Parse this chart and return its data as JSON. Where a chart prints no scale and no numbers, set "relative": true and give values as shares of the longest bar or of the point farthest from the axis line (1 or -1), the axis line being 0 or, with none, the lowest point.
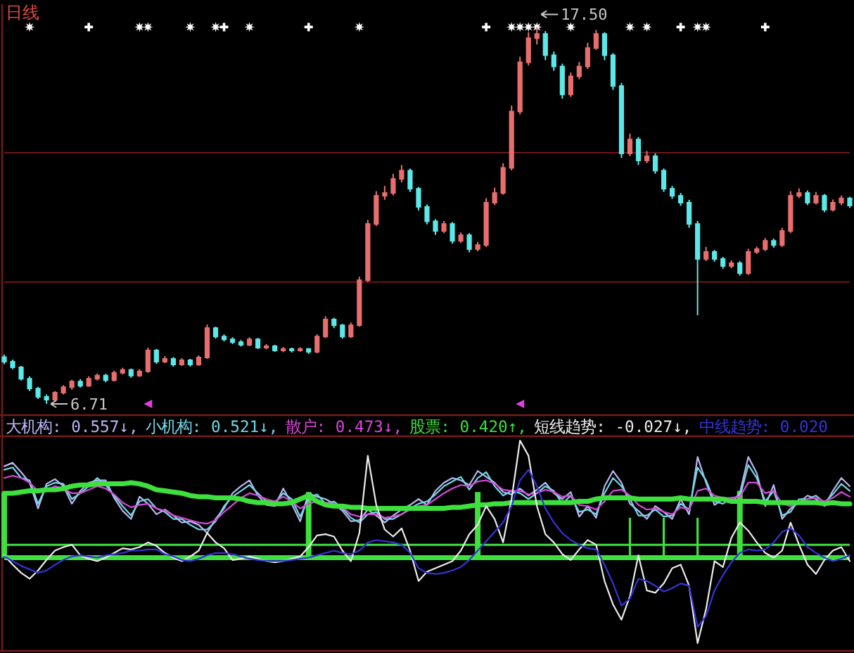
{
  "chart_data": [
    {
      "type": "candlestick",
      "title": "日线",
      "categories": [
        null,
        null,
        null,
        null,
        null,
        null,
        null,
        null,
        null,
        null,
        null,
        null,
        null,
        null,
        null,
        null,
        null,
        null,
        null,
        null,
        null,
        null,
        null,
        null,
        null,
        null,
        null,
        null,
        null,
        null,
        null,
        null,
        null,
        null,
        null,
        null,
        null,
        null,
        null,
        null,
        null,
        null,
        null,
        null,
        null,
        null,
        null,
        null,
        null,
        null,
        null,
        null,
        null,
        null,
        null,
        null,
        null,
        null,
        null,
        null,
        null,
        null,
        null,
        null,
        null,
        null,
        null,
        null,
        null,
        null,
        null,
        null,
        null,
        null,
        null,
        null,
        null,
        null,
        null,
        null,
        null,
        null,
        null,
        null,
        null,
        null,
        null,
        null,
        null,
        null,
        null,
        null,
        null,
        null,
        null,
        null,
        null,
        null,
        null,
        null,
        null
      ],
      "ohlc": [
        [
          8.05,
          8.12,
          7.85,
          7.92
        ],
        [
          7.92,
          7.98,
          7.7,
          7.76
        ],
        [
          7.76,
          7.8,
          7.38,
          7.43
        ],
        [
          7.43,
          7.5,
          7.08,
          7.15
        ],
        [
          7.15,
          7.2,
          6.85,
          6.91
        ],
        [
          6.91,
          6.98,
          6.71,
          6.83
        ],
        [
          6.83,
          7.08,
          6.78,
          7.03
        ],
        [
          7.03,
          7.25,
          6.98,
          7.19
        ],
        [
          7.19,
          7.4,
          7.12,
          7.35
        ],
        [
          7.35,
          7.42,
          7.18,
          7.23
        ],
        [
          7.23,
          7.5,
          7.2,
          7.43
        ],
        [
          7.43,
          7.58,
          7.38,
          7.52
        ],
        [
          7.52,
          7.57,
          7.33,
          7.39
        ],
        [
          7.39,
          7.66,
          7.35,
          7.6
        ],
        [
          7.6,
          7.75,
          7.55,
          7.68
        ],
        [
          7.68,
          7.72,
          7.46,
          7.52
        ],
        [
          7.52,
          7.7,
          7.48,
          7.64
        ],
        [
          7.64,
          8.32,
          7.6,
          8.24
        ],
        [
          8.24,
          8.28,
          7.86,
          7.92
        ],
        [
          7.92,
          8.08,
          7.88,
          8.0
        ],
        [
          8.0,
          8.05,
          7.78,
          7.84
        ],
        [
          7.84,
          8.02,
          7.8,
          7.96
        ],
        [
          7.96,
          8.0,
          7.78,
          7.84
        ],
        [
          7.84,
          8.1,
          7.8,
          8.04
        ],
        [
          8.04,
          8.98,
          8.0,
          8.88
        ],
        [
          8.88,
          8.92,
          8.58,
          8.64
        ],
        [
          8.64,
          8.7,
          8.5,
          8.56
        ],
        [
          8.56,
          8.62,
          8.42,
          8.48
        ],
        [
          8.48,
          8.54,
          8.35,
          8.4
        ],
        [
          8.4,
          8.62,
          8.36,
          8.56
        ],
        [
          8.56,
          8.6,
          8.28,
          8.32
        ],
        [
          8.32,
          8.42,
          8.27,
          8.36
        ],
        [
          8.36,
          8.4,
          8.2,
          8.24
        ],
        [
          8.24,
          8.34,
          8.19,
          8.28
        ],
        [
          8.28,
          8.32,
          8.18,
          8.24
        ],
        [
          8.24,
          8.33,
          8.2,
          8.28
        ],
        [
          8.28,
          8.31,
          8.14,
          8.2
        ],
        [
          8.2,
          8.7,
          8.16,
          8.64
        ],
        [
          8.64,
          9.22,
          8.6,
          9.13
        ],
        [
          9.13,
          9.18,
          8.88,
          8.96
        ],
        [
          8.96,
          9.0,
          8.58,
          8.64
        ],
        [
          8.64,
          9.04,
          8.6,
          8.96
        ],
        [
          8.96,
          10.35,
          8.92,
          10.25
        ],
        [
          10.25,
          11.98,
          10.2,
          11.86
        ],
        [
          11.86,
          12.8,
          11.8,
          12.67
        ],
        [
          12.67,
          12.95,
          12.55,
          12.75
        ],
        [
          12.75,
          13.3,
          12.68,
          13.15
        ],
        [
          13.15,
          13.55,
          13.05,
          13.39
        ],
        [
          13.39,
          13.45,
          12.78,
          12.87
        ],
        [
          12.87,
          12.92,
          12.25,
          12.35
        ],
        [
          12.35,
          12.42,
          11.85,
          11.94
        ],
        [
          11.94,
          12.0,
          11.55,
          11.66
        ],
        [
          11.66,
          11.95,
          11.6,
          11.86
        ],
        [
          11.86,
          11.92,
          11.3,
          11.38
        ],
        [
          11.38,
          11.62,
          11.32,
          11.54
        ],
        [
          11.54,
          11.6,
          11.05,
          11.14
        ],
        [
          11.14,
          11.35,
          11.08,
          11.26
        ],
        [
          11.26,
          12.6,
          11.2,
          12.47
        ],
        [
          12.47,
          12.9,
          12.4,
          12.75
        ],
        [
          12.75,
          13.6,
          12.7,
          13.47
        ],
        [
          13.47,
          15.25,
          13.4,
          15.08
        ],
        [
          15.08,
          16.65,
          15.0,
          16.49
        ],
        [
          16.49,
          17.35,
          16.4,
          17.18
        ],
        [
          17.18,
          17.5,
          17.0,
          17.3
        ],
        [
          17.3,
          17.38,
          16.55,
          16.69
        ],
        [
          16.69,
          16.8,
          16.25,
          16.37
        ],
        [
          16.37,
          16.45,
          15.45,
          15.57
        ],
        [
          15.57,
          16.2,
          15.5,
          16.09
        ],
        [
          16.09,
          16.5,
          16.0,
          16.37
        ],
        [
          16.37,
          17.05,
          16.3,
          16.9
        ],
        [
          16.9,
          17.42,
          16.85,
          17.3
        ],
        [
          17.3,
          17.35,
          16.55,
          16.69
        ],
        [
          16.69,
          16.75,
          15.7,
          15.81
        ],
        [
          15.81,
          15.9,
          13.75,
          13.88
        ],
        [
          13.88,
          14.45,
          13.8,
          14.28
        ],
        [
          14.28,
          14.35,
          13.55,
          13.68
        ],
        [
          13.68,
          13.95,
          13.6,
          13.8
        ],
        [
          13.8,
          13.88,
          13.3,
          13.39
        ],
        [
          13.39,
          13.45,
          12.78,
          12.87
        ],
        [
          12.87,
          12.95,
          12.58,
          12.67
        ],
        [
          12.67,
          12.75,
          12.38,
          12.47
        ],
        [
          12.47,
          12.55,
          11.75,
          11.86
        ],
        [
          11.86,
          11.95,
          9.25,
          10.86
        ],
        [
          10.86,
          11.2,
          10.8,
          11.06
        ],
        [
          11.06,
          11.12,
          10.78,
          10.86
        ],
        [
          10.86,
          10.92,
          10.58,
          10.66
        ],
        [
          10.66,
          10.82,
          10.6,
          10.74
        ],
        [
          10.74,
          10.8,
          10.38,
          10.45
        ],
        [
          10.45,
          11.15,
          10.4,
          11.06
        ],
        [
          11.06,
          11.22,
          11.0,
          11.14
        ],
        [
          11.14,
          11.46,
          11.08,
          11.38
        ],
        [
          11.38,
          11.44,
          11.18,
          11.26
        ],
        [
          11.26,
          11.75,
          11.2,
          11.66
        ],
        [
          11.66,
          12.8,
          11.6,
          12.67
        ],
        [
          12.67,
          12.88,
          12.6,
          12.75
        ],
        [
          12.75,
          12.82,
          12.4,
          12.47
        ],
        [
          12.47,
          12.78,
          12.42,
          12.67
        ],
        [
          12.67,
          12.72,
          12.2,
          12.27
        ],
        [
          12.27,
          12.56,
          12.22,
          12.47
        ],
        [
          12.47,
          12.68,
          12.4,
          12.59
        ],
        [
          12.59,
          12.64,
          12.32,
          12.39
        ]
      ],
      "colors": [
        "#5ce8e8",
        "#5ce8e8",
        "#5ce8e8",
        "#5ce8e8",
        "#5ce8e8",
        "#5ce8e8",
        "#e86e6e",
        "#e86e6e",
        "#e86e6e",
        "#5ce8e8",
        "#e86e6e",
        "#e86e6e",
        "#5ce8e8",
        "#e86e6e",
        "#e86e6e",
        "#5ce8e8",
        "#e86e6e",
        "#e86e6e",
        "#5ce8e8",
        "#e86e6e",
        "#5ce8e8",
        "#e86e6e",
        "#5ce8e8",
        "#e86e6e",
        "#e86e6e",
        "#5ce8e8",
        "#5ce8e8",
        "#5ce8e8",
        "#5ce8e8",
        "#e86e6e",
        "#5ce8e8",
        "#e86e6e",
        "#5ce8e8",
        "#e86e6e",
        "#5ce8e8",
        "#e86e6e",
        "#5ce8e8",
        "#e86e6e",
        "#e86e6e",
        "#5ce8e8",
        "#5ce8e8",
        "#e86e6e",
        "#e86e6e",
        "#e86e6e",
        "#e86e6e",
        "#e86e6e",
        "#e86e6e",
        "#e86e6e",
        "#5ce8e8",
        "#5ce8e8",
        "#5ce8e8",
        "#5ce8e8",
        "#e86e6e",
        "#5ce8e8",
        "#e86e6e",
        "#5ce8e8",
        "#e86e6e",
        "#e86e6e",
        "#e86e6e",
        "#e86e6e",
        "#e86e6e",
        "#e86e6e",
        "#e86e6e",
        "#e86e6e",
        "#5ce8e8",
        "#5ce8e8",
        "#5ce8e8",
        "#e86e6e",
        "#e86e6e",
        "#e86e6e",
        "#e86e6e",
        "#5ce8e8",
        "#5ce8e8",
        "#5ce8e8",
        "#e86e6e",
        "#5ce8e8",
        "#e86e6e",
        "#5ce8e8",
        "#5ce8e8",
        "#5ce8e8",
        "#5ce8e8",
        "#5ce8e8",
        "#5ce8e8",
        "#e86e6e",
        "#5ce8e8",
        "#5ce8e8",
        "#e86e6e",
        "#5ce8e8",
        "#e86e6e",
        "#e86e6e",
        "#e86e6e",
        "#5ce8e8",
        "#e86e6e",
        "#e86e6e",
        "#e86e6e",
        "#5ce8e8",
        "#e86e6e",
        "#5ce8e8",
        "#e86e6e",
        "#e86e6e",
        "#5ce8e8"
      ],
      "yticks": [
        {
          "value": 13.9,
          "label": null
        },
        {
          "value": 10.2,
          "label": null
        }
      ],
      "grid": true,
      "annotations": [
        "17.50",
        "6.71"
      ],
      "series": [
        {
          "type": "scatter",
          "marker": "star",
          "color": "#ffffff",
          "values": [
            null,
            null,
            null,
            17.5,
            null,
            null,
            null,
            null,
            null,
            null,
            null,
            null,
            null,
            null,
            null,
            null,
            17.5,
            17.5,
            null,
            null,
            null,
            null,
            17.5,
            null,
            null,
            17.5,
            null,
            null,
            null,
            17.5,
            null,
            null,
            null,
            null,
            null,
            null,
            null,
            null,
            null,
            null,
            null,
            null,
            17.5,
            null,
            null,
            null,
            null,
            null,
            null,
            null,
            null,
            null,
            null,
            null,
            null,
            null,
            null,
            null,
            null,
            null,
            17.5,
            17.5,
            17.5,
            17.5,
            null,
            null,
            null,
            17.5,
            null,
            null,
            null,
            null,
            null,
            null,
            17.5,
            null,
            17.5,
            null,
            null,
            null,
            null,
            null,
            17.5,
            17.5,
            null,
            null,
            null,
            null,
            null,
            null,
            null,
            null,
            null,
            null,
            null,
            null,
            null,
            null,
            null,
            null,
            null
          ]
        },
        {
          "type": "scatter",
          "marker": "cross",
          "color": "#ffffff",
          "values": [
            null,
            null,
            null,
            null,
            null,
            null,
            null,
            null,
            null,
            null,
            17.5,
            null,
            null,
            null,
            null,
            null,
            null,
            null,
            null,
            null,
            null,
            null,
            null,
            null,
            null,
            null,
            17.5,
            null,
            null,
            null,
            null,
            null,
            null,
            null,
            null,
            null,
            17.5,
            null,
            null,
            null,
            null,
            null,
            null,
            null,
            null,
            null,
            null,
            null,
            null,
            null,
            null,
            null,
            null,
            null,
            null,
            null,
            null,
            17.5,
            null,
            null,
            null,
            null,
            null,
            null,
            null,
            null,
            null,
            null,
            null,
            null,
            null,
            null,
            null,
            null,
            null,
            null,
            null,
            null,
            null,
            null,
            17.5,
            null,
            null,
            null,
            null,
            null,
            null,
            null,
            null,
            null,
            17.5,
            null,
            null,
            null,
            null,
            null,
            null,
            null,
            null,
            null,
            null
          ]
        },
        {
          "type": "scatter",
          "marker": "triangle",
          "color": "#e040e0",
          "values": [
            null,
            null,
            null,
            null,
            null,
            null,
            null,
            null,
            null,
            null,
            null,
            null,
            null,
            null,
            null,
            null,
            null,
            6.71,
            null,
            null,
            null,
            null,
            null,
            null,
            null,
            null,
            null,
            null,
            null,
            null,
            null,
            null,
            null,
            null,
            null,
            null,
            null,
            null,
            null,
            null,
            null,
            null,
            null,
            null,
            null,
            null,
            null,
            null,
            null,
            null,
            null,
            null,
            null,
            null,
            null,
            null,
            null,
            null,
            null,
            null,
            null,
            6.71,
            null,
            null,
            null,
            null,
            null,
            null,
            null,
            null,
            null,
            null,
            null,
            null,
            null,
            null,
            null,
            null,
            null,
            null,
            null,
            null,
            null,
            null,
            null,
            null,
            null,
            null,
            null,
            null,
            null,
            null,
            null,
            null,
            null,
            null,
            null,
            null,
            null,
            null,
            null
          ]
        }
      ]
    },
    {
      "type": "line",
      "relative": true,
      "categories": [
        null,
        null,
        null,
        null,
        null,
        null,
        null,
        null,
        null,
        null,
        null,
        null,
        null,
        null,
        null,
        null,
        null,
        null,
        null,
        null,
        null,
        null,
        null,
        null,
        null,
        null,
        null,
        null,
        null,
        null,
        null,
        null,
        null,
        null,
        null,
        null,
        null,
        null,
        null,
        null,
        null,
        null,
        null,
        null,
        null,
        null,
        null,
        null,
        null,
        null,
        null,
        null,
        null,
        null,
        null,
        null,
        null,
        null,
        null,
        null,
        null,
        null,
        null,
        null,
        null,
        null,
        null,
        null,
        null,
        null,
        null,
        null,
        null,
        null,
        null,
        null,
        null,
        null,
        null,
        null,
        null,
        null,
        null,
        null,
        null,
        null,
        null,
        null,
        null,
        null,
        null,
        null,
        null,
        null,
        null,
        null,
        null,
        null,
        null,
        null,
        null
      ],
      "ref_lines": [
        {
          "axis": "y",
          "value": 0,
          "color": "#3ee03e"
        },
        {
          "axis": "y",
          "value": 0.11,
          "color": "#3ee03e"
        }
      ],
      "series": [
        {
          "name": "大机构: 0.557↓,",
          "color": "#b8b8f4",
          "values": [
            0.78,
            0.81,
            0.73,
            0.64,
            0.42,
            0.63,
            0.67,
            0.61,
            0.46,
            0.57,
            0.64,
            0.66,
            0.66,
            0.51,
            0.4,
            0.33,
            0.52,
            0.46,
            0.37,
            0.41,
            0.36,
            0.3,
            0.31,
            0.28,
            0.21,
            0.33,
            0.42,
            0.55,
            0.61,
            0.66,
            0.53,
            0.45,
            0.44,
            0.59,
            0.46,
            0.31,
            0.55,
            0.52,
            0.5,
            0.46,
            0.4,
            0.31,
            0.32,
            0.41,
            0.36,
            0.3,
            0.36,
            0.41,
            0.45,
            0.5,
            0.45,
            0.57,
            0.64,
            0.68,
            0.66,
            0.62,
            0.74,
            0.69,
            0.64,
            0.56,
            0.54,
            0.59,
            0.53,
            0.58,
            0.64,
            0.55,
            0.5,
            0.56,
            0.35,
            0.44,
            0.34,
            0.61,
            0.74,
            0.64,
            0.46,
            0.4,
            0.33,
            0.44,
            0.39,
            0.33,
            0.5,
            0.37,
            0.86,
            0.64,
            0.45,
            0.5,
            0.47,
            0.55,
            0.86,
            0.72,
            0.44,
            0.62,
            0.33,
            0.42,
            0.47,
            0.53,
            0.5,
            0.44,
            0.57,
            0.68,
            0.61
          ]
        },
        {
          "name": "小机构: 0.521↓,",
          "color": "#72d8e6",
          "values": [
            0.75,
            0.77,
            0.68,
            0.66,
            0.46,
            0.61,
            0.64,
            0.63,
            0.5,
            0.55,
            0.61,
            0.68,
            0.62,
            0.53,
            0.44,
            0.36,
            0.48,
            0.5,
            0.42,
            0.39,
            0.33,
            0.33,
            0.28,
            0.24,
            0.24,
            0.31,
            0.44,
            0.52,
            0.57,
            0.62,
            0.55,
            0.48,
            0.47,
            0.55,
            0.5,
            0.35,
            0.51,
            0.54,
            0.46,
            0.48,
            0.42,
            0.34,
            0.3,
            0.37,
            0.39,
            0.33,
            0.33,
            0.37,
            0.42,
            0.46,
            0.48,
            0.54,
            0.61,
            0.65,
            0.69,
            0.58,
            0.68,
            0.73,
            0.61,
            0.53,
            0.57,
            0.55,
            0.5,
            0.55,
            0.61,
            0.57,
            0.46,
            0.53,
            0.39,
            0.41,
            0.37,
            0.55,
            0.68,
            0.61,
            0.5,
            0.36,
            0.36,
            0.41,
            0.35,
            0.36,
            0.46,
            0.41,
            0.77,
            0.66,
            0.48,
            0.46,
            0.51,
            0.52,
            0.79,
            0.68,
            0.48,
            0.57,
            0.36,
            0.39,
            0.5,
            0.5,
            0.53,
            0.47,
            0.54,
            0.63,
            0.57
          ]
        },
        {
          "name": "散户: 0.473↓,",
          "color": "#d848d8",
          "values": [
            0.68,
            0.7,
            0.68,
            0.64,
            0.57,
            0.58,
            0.61,
            0.59,
            0.55,
            0.55,
            0.58,
            0.61,
            0.59,
            0.54,
            0.47,
            0.43,
            0.45,
            0.46,
            0.42,
            0.4,
            0.36,
            0.34,
            0.32,
            0.3,
            0.29,
            0.32,
            0.39,
            0.45,
            0.51,
            0.55,
            0.53,
            0.5,
            0.48,
            0.52,
            0.48,
            0.42,
            0.46,
            0.48,
            0.47,
            0.46,
            0.43,
            0.37,
            0.35,
            0.37,
            0.37,
            0.34,
            0.35,
            0.37,
            0.41,
            0.44,
            0.45,
            0.5,
            0.55,
            0.59,
            0.62,
            0.61,
            0.65,
            0.66,
            0.63,
            0.58,
            0.57,
            0.57,
            0.54,
            0.55,
            0.58,
            0.56,
            0.52,
            0.53,
            0.45,
            0.44,
            0.41,
            0.48,
            0.57,
            0.58,
            0.53,
            0.45,
            0.41,
            0.42,
            0.39,
            0.37,
            0.43,
            0.41,
            0.57,
            0.59,
            0.53,
            0.51,
            0.51,
            0.52,
            0.64,
            0.64,
            0.55,
            0.57,
            0.46,
            0.44,
            0.47,
            0.5,
            0.51,
            0.48,
            0.51,
            0.56,
            0.52
          ]
        },
        {
          "name": "股票: 0.420↑,",
          "color": "#3ee03e",
          "values": [
            0.55,
            0.55,
            0.56,
            0.57,
            0.57,
            0.58,
            0.58,
            0.59,
            0.61,
            0.62,
            0.62,
            0.63,
            0.63,
            0.63,
            0.63,
            0.64,
            0.63,
            0.61,
            0.58,
            0.57,
            0.56,
            0.55,
            0.53,
            0.52,
            0.52,
            0.51,
            0.51,
            0.51,
            0.5,
            0.48,
            0.47,
            0.47,
            0.46,
            0.46,
            0.47,
            0.5,
            0.53,
            0.48,
            0.45,
            0.44,
            0.44,
            0.43,
            0.43,
            0.42,
            0.42,
            0.42,
            0.42,
            0.42,
            0.42,
            0.42,
            0.42,
            0.42,
            0.42,
            0.43,
            0.43,
            0.44,
            0.45,
            0.45,
            0.46,
            0.46,
            0.47,
            0.47,
            0.47,
            0.47,
            0.47,
            0.47,
            0.47,
            0.47,
            0.48,
            0.48,
            0.5,
            0.51,
            0.51,
            0.51,
            0.51,
            0.5,
            0.5,
            0.5,
            0.5,
            0.5,
            0.51,
            0.5,
            0.5,
            0.5,
            0.5,
            0.5,
            0.48,
            0.48,
            0.48,
            0.48,
            0.47,
            0.47,
            0.47,
            0.47,
            0.47,
            0.47,
            0.47,
            0.46,
            0.47,
            0.46,
            0.46
          ]
        },
        {
          "name": "短线趋势: -0.027↓,",
          "color": "#ececec",
          "values": [
            0.02,
            -0.06,
            -0.13,
            -0.18,
            -0.11,
            -0.02,
            0.06,
            0.09,
            0.11,
            0.02,
            -0.01,
            -0.03,
            0.0,
            0.04,
            0.08,
            0.07,
            0.09,
            0.13,
            0.1,
            0.04,
            0.0,
            -0.03,
            0.01,
            0.06,
            0.21,
            0.13,
            0.08,
            -0.02,
            -0.01,
            0.01,
            -0.01,
            -0.03,
            -0.04,
            -0.03,
            -0.01,
            0.01,
            0.09,
            0.19,
            0.2,
            0.18,
            0.06,
            -0.03,
            0.21,
            0.87,
            0.45,
            0.24,
            0.18,
            0.25,
            0.06,
            -0.2,
            -0.12,
            -0.09,
            -0.06,
            -0.03,
            0.06,
            0.2,
            0.28,
            0.44,
            0.33,
            0.13,
            0.5,
            1.0,
            0.87,
            0.44,
            0.2,
            0.13,
            0.03,
            -0.02,
            0.07,
            0.15,
            0.11,
            -0.2,
            -0.4,
            -0.53,
            -0.33,
            0.02,
            -0.28,
            -0.3,
            -0.22,
            -0.09,
            -0.06,
            -0.24,
            -0.73,
            -0.44,
            -0.03,
            -0.08,
            0.17,
            0.3,
            0.23,
            0.13,
            0.04,
            0.0,
            0.06,
            0.3,
            0.11,
            -0.06,
            -0.14,
            -0.02,
            0.06,
            0.09,
            -0.03
          ]
        },
        {
          "name": "中线趋势: 0.020",
          "color": "#3434d8",
          "values": [
            0.01,
            -0.03,
            -0.07,
            -0.1,
            -0.13,
            -0.11,
            -0.06,
            -0.02,
            0.01,
            0.02,
            0.01,
            0.0,
            0.02,
            0.03,
            0.04,
            0.06,
            0.06,
            0.07,
            0.07,
            0.03,
            0.01,
            -0.02,
            -0.03,
            -0.01,
            0.02,
            0.04,
            0.04,
            0.03,
            0.01,
            -0.01,
            -0.02,
            -0.03,
            -0.03,
            -0.03,
            -0.02,
            -0.01,
            0.0,
            0.02,
            0.04,
            0.06,
            0.04,
            0.03,
            0.06,
            0.13,
            0.15,
            0.14,
            0.13,
            0.11,
            0.04,
            -0.09,
            -0.13,
            -0.14,
            -0.13,
            -0.11,
            -0.08,
            -0.02,
            0.06,
            0.14,
            0.22,
            0.3,
            0.44,
            0.66,
            0.75,
            0.61,
            0.42,
            0.3,
            0.21,
            0.15,
            0.11,
            0.08,
            0.07,
            -0.06,
            -0.22,
            -0.41,
            -0.35,
            -0.18,
            -0.2,
            -0.24,
            -0.29,
            -0.26,
            -0.22,
            -0.24,
            -0.59,
            -0.5,
            -0.28,
            -0.15,
            -0.04,
            0.04,
            0.07,
            0.06,
            0.07,
            0.13,
            0.22,
            0.25,
            0.19,
            0.09,
            0.04,
            0.0,
            -0.03,
            -0.01,
            0.02
          ]
        },
        {
          "type": "bar",
          "color": "#3ee03e",
          "values": [
            0.55,
            null,
            null,
            null,
            null,
            null,
            null,
            null,
            null,
            null,
            null,
            null,
            null,
            null,
            null,
            null,
            null,
            null,
            null,
            null,
            null,
            null,
            null,
            null,
            null,
            null,
            null,
            null,
            null,
            null,
            null,
            null,
            null,
            null,
            null,
            null,
            0.56,
            null,
            null,
            null,
            null,
            null,
            null,
            null,
            null,
            null,
            null,
            null,
            null,
            null,
            null,
            null,
            null,
            null,
            null,
            null,
            0.56,
            null,
            null,
            null,
            null,
            null,
            null,
            null,
            null,
            null,
            null,
            null,
            null,
            null,
            null,
            null,
            null,
            null,
            null,
            null,
            null,
            null,
            null,
            null,
            null,
            null,
            null,
            null,
            null,
            null,
            null,
            0.57,
            null,
            null,
            null,
            null,
            null,
            null,
            null,
            null,
            null,
            null,
            null,
            null,
            null
          ]
        },
        {
          "type": "bar",
          "color": "#3ee03e",
          "values": [
            null,
            null,
            null,
            null,
            null,
            null,
            null,
            null,
            null,
            null,
            null,
            null,
            null,
            null,
            null,
            null,
            null,
            null,
            null,
            null,
            null,
            null,
            null,
            null,
            null,
            null,
            null,
            null,
            null,
            null,
            null,
            null,
            null,
            null,
            null,
            null,
            null,
            null,
            null,
            null,
            null,
            null,
            null,
            null,
            null,
            null,
            null,
            null,
            null,
            null,
            null,
            null,
            null,
            null,
            null,
            null,
            null,
            null,
            null,
            null,
            null,
            null,
            null,
            null,
            null,
            null,
            null,
            null,
            null,
            null,
            null,
            null,
            null,
            null,
            0.34,
            null,
            null,
            null,
            0.34,
            null,
            null,
            null,
            0.34,
            null,
            null,
            null,
            null,
            null,
            null,
            null,
            null,
            null,
            null,
            null,
            null,
            null,
            null,
            null,
            null,
            null,
            null
          ]
        }
      ]
    }
  ]
}
